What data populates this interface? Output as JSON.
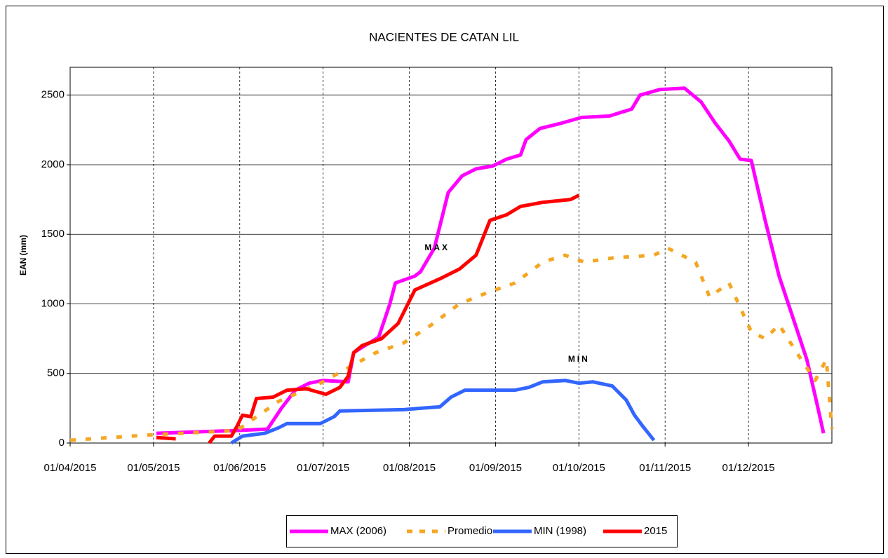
{
  "chart_data": {
    "type": "line",
    "title": "NACIENTES DE CATAN LIL",
    "y_label": "EAN (mm)",
    "xlim": [
      "2015-04-01",
      "2015-12-31"
    ],
    "xticks": [
      {
        "value": "2015-04-01",
        "label": "01/04/2015"
      },
      {
        "value": "2015-05-01",
        "label": "01/05/2015"
      },
      {
        "value": "2015-06-01",
        "label": "01/06/2015"
      },
      {
        "value": "2015-07-01",
        "label": "01/07/2015"
      },
      {
        "value": "2015-08-01",
        "label": "01/08/2015"
      },
      {
        "value": "2015-09-01",
        "label": "01/09/2015"
      },
      {
        "value": "2015-10-01",
        "label": "01/10/2015"
      },
      {
        "value": "2015-11-01",
        "label": "01/11/2015"
      },
      {
        "value": "2015-12-01",
        "label": "01/12/2015"
      }
    ],
    "ylim": [
      0,
      2700
    ],
    "yticks": [
      0,
      500,
      1000,
      1500,
      2000,
      2500
    ],
    "grid": true,
    "legend": "bottom",
    "annotations": [
      {
        "text": "MAX",
        "x": "2015-08-11",
        "y": 1400,
        "color": "#ff00ff"
      },
      {
        "text": "MIN",
        "x": "2015-10-01",
        "y": 600,
        "color": "#3366ff"
      }
    ],
    "series": [
      {
        "name": "MAX (2006)",
        "color": "#ff00ff",
        "style": "solid",
        "x": [
          "2015-05-02",
          "2015-05-31",
          "2015-06-11",
          "2015-06-16",
          "2015-06-21",
          "2015-06-26",
          "2015-07-01",
          "2015-07-10",
          "2015-07-12",
          "2015-07-16",
          "2015-07-21",
          "2015-07-25",
          "2015-07-27",
          "2015-08-03",
          "2015-08-05",
          "2015-08-10",
          "2015-08-15",
          "2015-08-20",
          "2015-08-25",
          "2015-08-31",
          "2015-09-05",
          "2015-09-10",
          "2015-09-12",
          "2015-09-17",
          "2015-09-25",
          "2015-10-02",
          "2015-10-12",
          "2015-10-20",
          "2015-10-23",
          "2015-10-30",
          "2015-11-08",
          "2015-11-14",
          "2015-11-19",
          "2015-11-24",
          "2015-11-28",
          "2015-12-02",
          "2015-12-07",
          "2015-12-12",
          "2015-12-17",
          "2015-12-22",
          "2015-12-26",
          "2015-12-28"
        ],
        "values": [
          70,
          90,
          100,
          250,
          380,
          430,
          450,
          440,
          650,
          700,
          760,
          1000,
          1150,
          1200,
          1230,
          1400,
          1800,
          1920,
          1970,
          1990,
          2040,
          2070,
          2180,
          2260,
          2300,
          2340,
          2350,
          2400,
          2500,
          2540,
          2550,
          2450,
          2300,
          2170,
          2040,
          2030,
          1600,
          1200,
          900,
          600,
          250,
          70
        ]
      },
      {
        "name": "Promedio",
        "color": "#f5a623",
        "style": "dashed",
        "x": [
          "2015-04-01",
          "2015-05-01",
          "2015-05-31",
          "2015-06-15",
          "2015-06-30",
          "2015-07-10",
          "2015-07-20",
          "2015-07-30",
          "2015-08-09",
          "2015-08-19",
          "2015-08-29",
          "2015-09-08",
          "2015-09-18",
          "2015-09-26",
          "2015-10-03",
          "2015-10-13",
          "2015-10-28",
          "2015-11-02",
          "2015-11-12",
          "2015-11-17",
          "2015-11-24",
          "2015-12-02",
          "2015-12-07",
          "2015-12-12",
          "2015-12-19",
          "2015-12-25",
          "2015-12-29",
          "2015-12-31"
        ],
        "values": [
          20,
          60,
          90,
          300,
          430,
          540,
          650,
          720,
          850,
          1000,
          1080,
          1150,
          1300,
          1350,
          1300,
          1330,
          1350,
          1400,
          1300,
          1050,
          1150,
          800,
          750,
          850,
          630,
          450,
          600,
          100
        ]
      },
      {
        "name": "MIN (1998)",
        "color": "#3366ff",
        "style": "solid",
        "x": [
          "2015-05-29",
          "2015-06-02",
          "2015-06-10",
          "2015-06-15",
          "2015-06-18",
          "2015-06-30",
          "2015-07-05",
          "2015-07-07",
          "2015-07-30",
          "2015-08-05",
          "2015-08-12",
          "2015-08-16",
          "2015-08-21",
          "2015-09-08",
          "2015-09-13",
          "2015-09-18",
          "2015-09-26",
          "2015-10-01",
          "2015-10-06",
          "2015-10-13",
          "2015-10-18",
          "2015-10-21",
          "2015-10-24",
          "2015-10-28"
        ],
        "values": [
          0,
          50,
          70,
          110,
          140,
          140,
          190,
          230,
          240,
          250,
          260,
          330,
          380,
          380,
          400,
          440,
          450,
          430,
          440,
          410,
          310,
          200,
          120,
          20
        ]
      },
      {
        "name": "2015",
        "color": "#ff0000",
        "style": "solid",
        "x": [
          "2015-05-02",
          "2015-05-09",
          "2015-05-15",
          "2015-05-21",
          "2015-05-23",
          "2015-05-29",
          "2015-05-31",
          "2015-06-02",
          "2015-06-05",
          "2015-06-07",
          "2015-06-13",
          "2015-06-18",
          "2015-06-25",
          "2015-07-02",
          "2015-07-07",
          "2015-07-10",
          "2015-07-12",
          "2015-07-15",
          "2015-07-22",
          "2015-07-28",
          "2015-08-03",
          "2015-08-12",
          "2015-08-19",
          "2015-08-25",
          "2015-08-30",
          "2015-09-05",
          "2015-09-10",
          "2015-09-18",
          "2015-09-28",
          "2015-10-01"
        ],
        "values": [
          40,
          30,
          null,
          0,
          50,
          50,
          120,
          200,
          190,
          320,
          330,
          380,
          390,
          350,
          400,
          480,
          650,
          700,
          750,
          860,
          1100,
          1180,
          1250,
          1350,
          1600,
          1640,
          1700,
          1730,
          1750,
          1780
        ]
      }
    ]
  }
}
